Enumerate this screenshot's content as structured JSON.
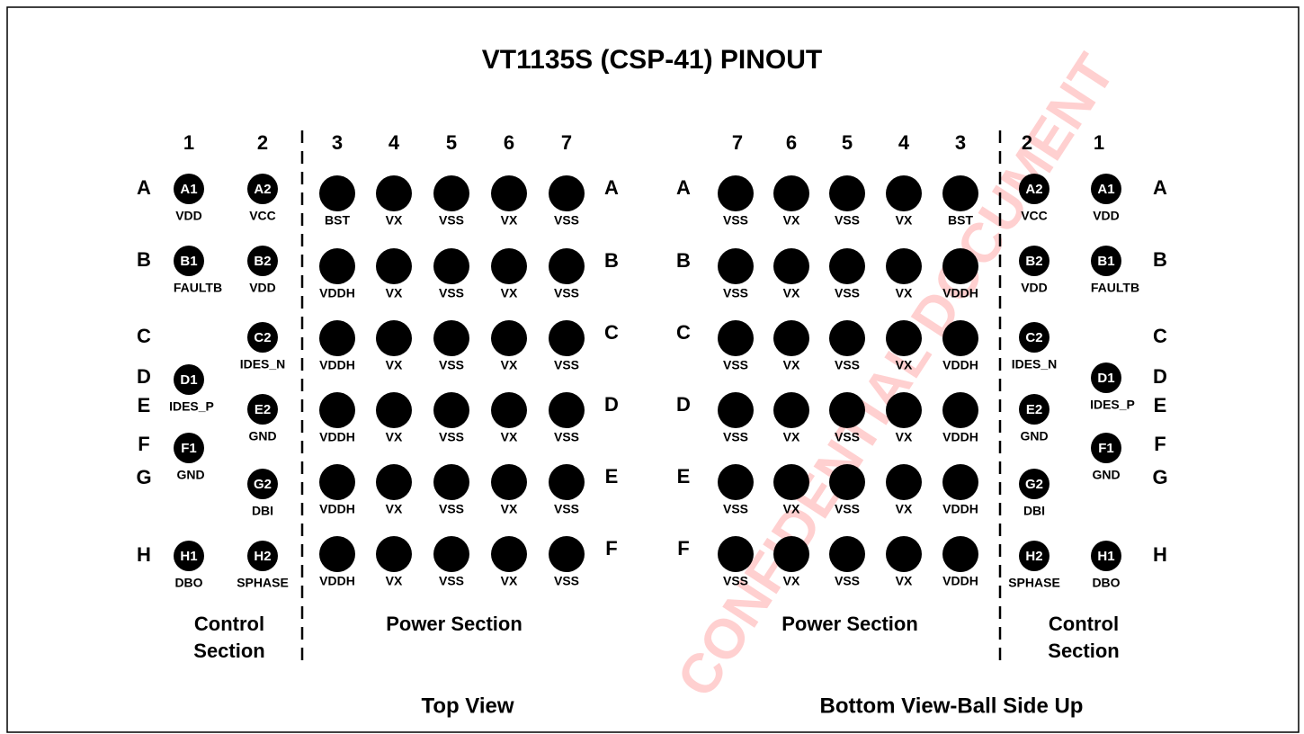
{
  "title": "VT1135S (CSP-41) PINOUT",
  "watermark": "CONFIDENTIAL DOCUMENT",
  "panels": [
    {
      "view": "Top View",
      "columns": [
        "1",
        "2",
        "3",
        "4",
        "5",
        "6",
        "7"
      ],
      "control_row_letters": [
        "A",
        "B",
        "C",
        "D",
        "E",
        "F",
        "G",
        "H"
      ],
      "power_row_letters": [
        "A",
        "B",
        "C",
        "D",
        "E",
        "F"
      ],
      "control_pins": [
        {
          "id": "A1",
          "name": "VDD"
        },
        {
          "id": "A2",
          "name": "VCC"
        },
        {
          "id": "B1",
          "name": "FAULTB"
        },
        {
          "id": "B2",
          "name": "VDD"
        },
        {
          "id": "C2",
          "name": "IDES_N"
        },
        {
          "id": "D1",
          "name": "IDES_P"
        },
        {
          "id": "E2",
          "name": "GND"
        },
        {
          "id": "F1",
          "name": "GND"
        },
        {
          "id": "G2",
          "name": "DBI"
        },
        {
          "id": "H1",
          "name": "DBO"
        },
        {
          "id": "H2",
          "name": "SPHASE"
        }
      ],
      "power_rows": [
        [
          "BST",
          "VX",
          "VSS",
          "VX",
          "VSS"
        ],
        [
          "VDDH",
          "VX",
          "VSS",
          "VX",
          "VSS"
        ],
        [
          "VDDH",
          "VX",
          "VSS",
          "VX",
          "VSS"
        ],
        [
          "VDDH",
          "VX",
          "VSS",
          "VX",
          "VSS"
        ],
        [
          "VDDH",
          "VX",
          "VSS",
          "VX",
          "VSS"
        ],
        [
          "VDDH",
          "VX",
          "VSS",
          "VX",
          "VSS"
        ]
      ],
      "control_section": [
        "Control",
        "Section"
      ],
      "power_section": "Power Section"
    },
    {
      "view": "Bottom View-Ball Side Up",
      "columns": [
        "7",
        "6",
        "5",
        "4",
        "3",
        "2",
        "1"
      ],
      "control_row_letters": [
        "A",
        "B",
        "C",
        "D",
        "E",
        "F",
        "G",
        "H"
      ],
      "power_row_letters": [
        "A",
        "B",
        "C",
        "D",
        "E",
        "F"
      ],
      "control_pins": [
        {
          "id": "A2",
          "name": "VCC"
        },
        {
          "id": "A1",
          "name": "VDD"
        },
        {
          "id": "B2",
          "name": "VDD"
        },
        {
          "id": "B1",
          "name": "FAULTB"
        },
        {
          "id": "C2",
          "name": "IDES_N"
        },
        {
          "id": "D1",
          "name": "IDES_P"
        },
        {
          "id": "E2",
          "name": "GND"
        },
        {
          "id": "F1",
          "name": "GND"
        },
        {
          "id": "G2",
          "name": "DBI"
        },
        {
          "id": "H2",
          "name": "SPHASE"
        },
        {
          "id": "H1",
          "name": "DBO"
        }
      ],
      "power_rows": [
        [
          "VSS",
          "VX",
          "VSS",
          "VX",
          "BST"
        ],
        [
          "VSS",
          "VX",
          "VSS",
          "VX",
          "VDDH"
        ],
        [
          "VSS",
          "VX",
          "VSS",
          "VX",
          "VDDH"
        ],
        [
          "VSS",
          "VX",
          "VSS",
          "VX",
          "VDDH"
        ],
        [
          "VSS",
          "VX",
          "VSS",
          "VX",
          "VDDH"
        ],
        [
          "VSS",
          "VX",
          "VSS",
          "VX",
          "VDDH"
        ]
      ],
      "control_section": [
        "Control",
        "Section"
      ],
      "power_section": "Power Section"
    }
  ]
}
